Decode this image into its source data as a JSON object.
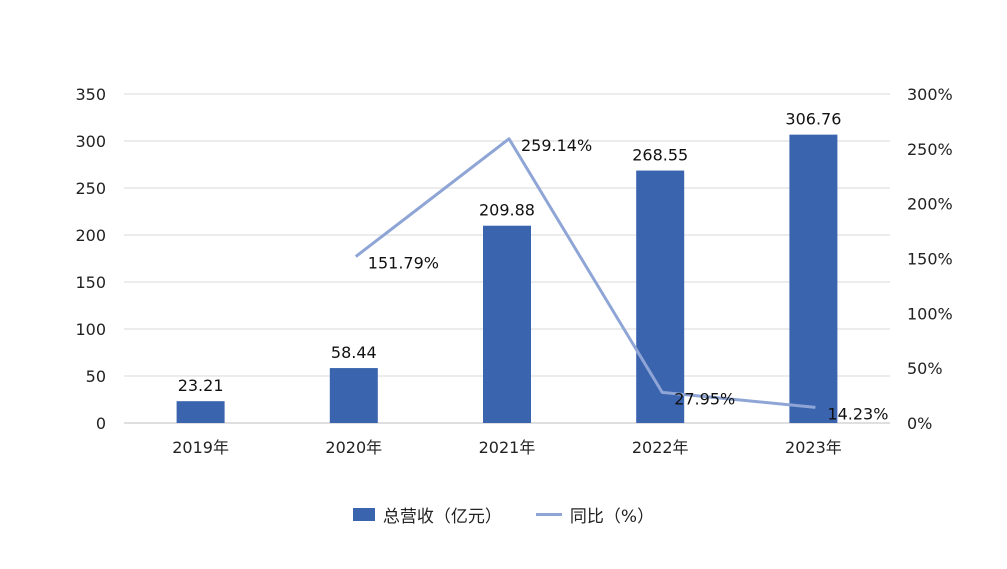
{
  "chart_data": {
    "type": "bar",
    "categories": [
      "2019年",
      "2020年",
      "2021年",
      "2022年",
      "2023年"
    ],
    "series": [
      {
        "name": "总营收（亿元）",
        "type": "bar",
        "axis": "left",
        "values": [
          23.21,
          58.44,
          209.88,
          268.55,
          306.76
        ],
        "labels": [
          "23.21",
          "58.44",
          "209.88",
          "268.55",
          "306.76"
        ],
        "color": "#3A64AE"
      },
      {
        "name": "同比（%）",
        "type": "line",
        "axis": "right",
        "values": [
          null,
          151.79,
          259.14,
          27.95,
          14.23
        ],
        "labels": [
          "",
          "151.79%",
          "259.14%",
          "27.95%",
          "14.23%"
        ],
        "color": "#8EA5D6"
      }
    ],
    "ylim_left": [
      0,
      350
    ],
    "yticks_left": [
      "0",
      "50",
      "100",
      "150",
      "200",
      "250",
      "300",
      "350"
    ],
    "ylim_right": [
      0,
      300
    ],
    "yticks_right": [
      "0%",
      "50%",
      "100%",
      "150%",
      "200%",
      "250%",
      "300%"
    ],
    "grid": true,
    "legend_position": "bottom"
  }
}
